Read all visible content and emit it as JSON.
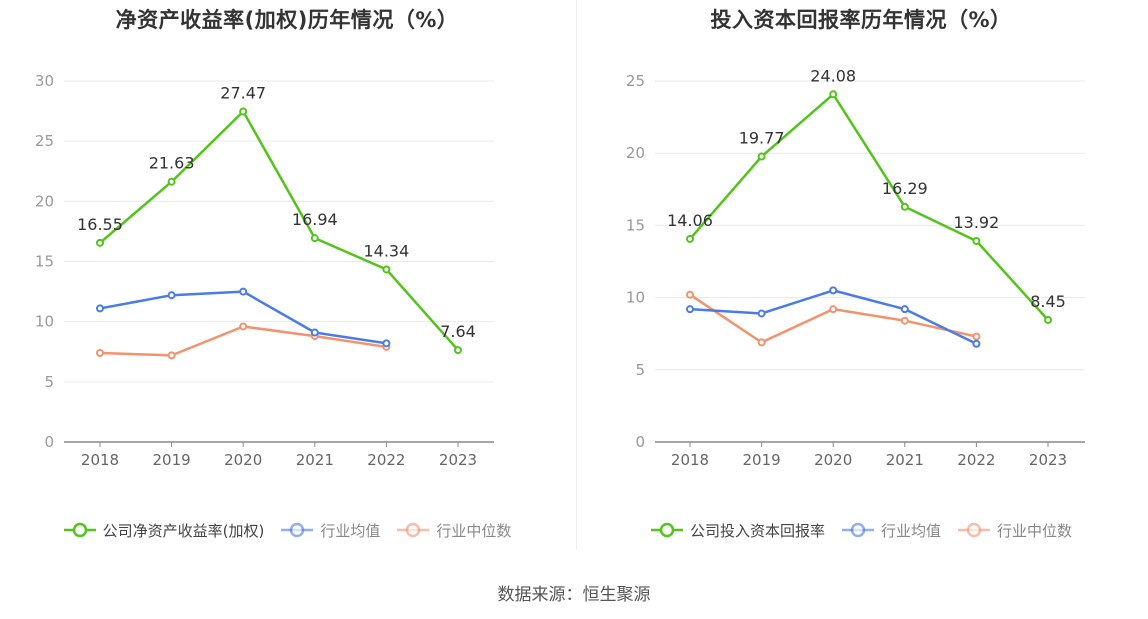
{
  "colors": {
    "company": "#52c41a",
    "avg": "#4a7be8",
    "median": "#f4926d",
    "grid": "#e6e9f0",
    "axis": "#888888"
  },
  "source": "数据来源：恒生聚源",
  "chart_data": [
    {
      "type": "line",
      "title": "净资产收益率(加权)历年情况（%）",
      "categories": [
        "2018",
        "2019",
        "2020",
        "2021",
        "2022",
        "2023"
      ],
      "ylim": [
        0,
        30
      ],
      "yticks": [
        "0",
        "5",
        "10",
        "15",
        "20",
        "25",
        "30"
      ],
      "grid": true,
      "legend_position": "bottom",
      "series": [
        {
          "name": "公司净资产收益率(加权)",
          "values": [
            16.55,
            21.63,
            27.47,
            16.94,
            14.34,
            7.64
          ],
          "labels": [
            "16.55",
            "21.63",
            "27.47",
            "16.94",
            "14.34",
            "7.64"
          ]
        },
        {
          "name": "行业均值",
          "values": [
            11.1,
            12.2,
            12.5,
            9.1,
            8.2,
            null
          ]
        },
        {
          "name": "行业中位数",
          "values": [
            7.4,
            7.2,
            9.6,
            8.8,
            7.9,
            null
          ]
        }
      ]
    },
    {
      "type": "line",
      "title": "投入资本回报率历年情况（%）",
      "categories": [
        "2018",
        "2019",
        "2020",
        "2021",
        "2022",
        "2023"
      ],
      "ylim": [
        0,
        25
      ],
      "yticks": [
        "0",
        "5",
        "10",
        "15",
        "20",
        "25"
      ],
      "grid": true,
      "legend_position": "bottom",
      "series": [
        {
          "name": "公司投入资本回报率",
          "values": [
            14.06,
            19.77,
            24.08,
            16.29,
            13.92,
            8.45
          ],
          "labels": [
            "14.06",
            "19.77",
            "24.08",
            "16.29",
            "13.92",
            "8.45"
          ]
        },
        {
          "name": "行业均值",
          "values": [
            9.2,
            8.9,
            10.5,
            9.2,
            6.8,
            null
          ]
        },
        {
          "name": "行业中位数",
          "values": [
            10.2,
            6.9,
            9.2,
            8.4,
            7.3,
            null
          ]
        }
      ]
    }
  ]
}
